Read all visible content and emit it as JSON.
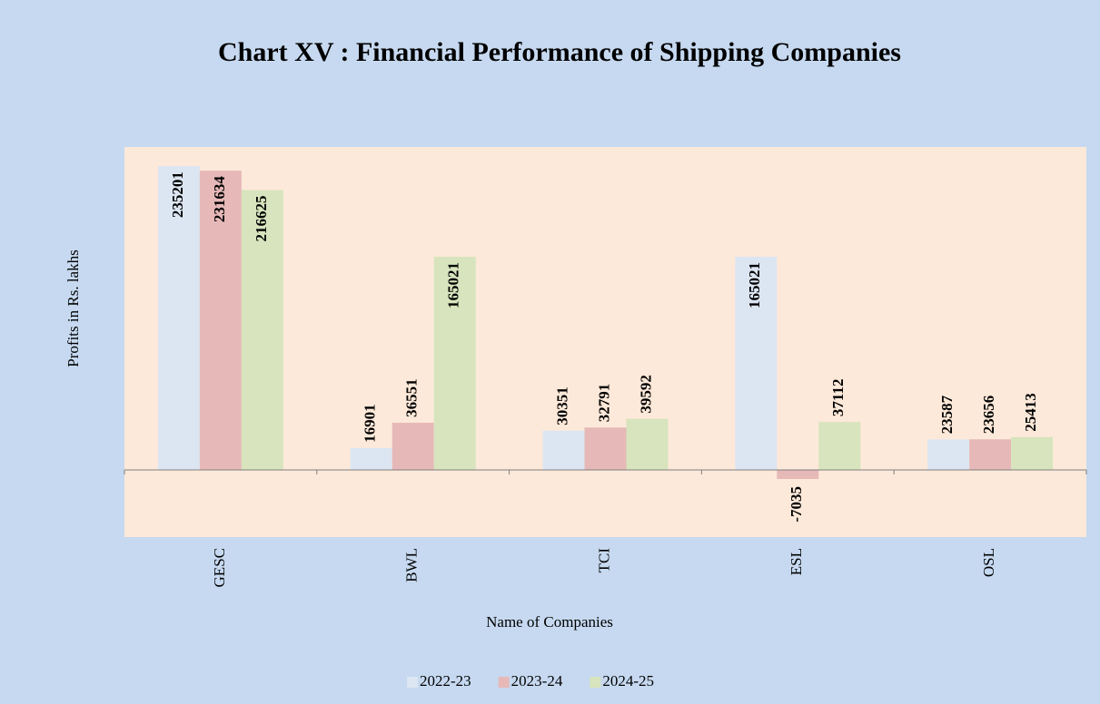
{
  "chart_data": {
    "type": "bar",
    "title": "Chart XV : Financial Performance of Shipping Companies",
    "x_label": "Name of Companies",
    "y_label": "Profits in  Rs. lakhs",
    "categories": [
      "GESC",
      "BWL",
      "TCI",
      "ESL",
      "OSL"
    ],
    "series": [
      {
        "name": "2022-23",
        "color": "#dce6f2",
        "values": [
          235201,
          16901,
          30351,
          165021,
          23587
        ]
      },
      {
        "name": "2023-24",
        "color": "#e6b9b8",
        "values": [
          231634,
          36551,
          32791,
          -7035,
          23656
        ]
      },
      {
        "name": "2024-25",
        "color": "#d7e4bd",
        "values": [
          216625,
          165021,
          39592,
          37112,
          25413
        ]
      }
    ],
    "ylim": [
      -52000,
      250000
    ],
    "legend": "bottom"
  }
}
